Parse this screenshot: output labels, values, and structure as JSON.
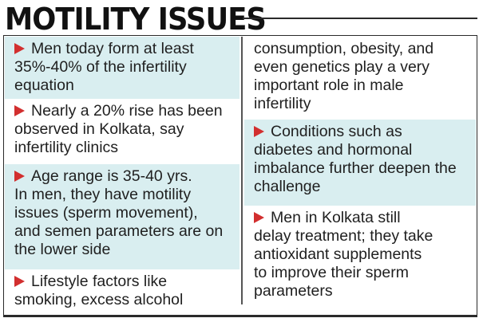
{
  "header": {
    "title": "MOTILITY ISSUES"
  },
  "left_column": {
    "items": [
      {
        "text": "Men today form at least\n35%-40% of the infertility\nequation",
        "has_bullet": true
      },
      {
        "text": "Nearly a 20% rise has been\nobserved in Kolkata, say\ninfertility clinics",
        "has_bullet": true
      },
      {
        "text": "Age range is 35-40 yrs.\nIn men, they have motility\nissues (sperm movement),\nand semen parameters are on\nthe lower side",
        "has_bullet": true
      },
      {
        "text": "Lifestyle factors like\nsmoking, excess alcohol",
        "has_bullet": true
      }
    ]
  },
  "right_column": {
    "items": [
      {
        "text": "consumption, obesity, and\neven genetics play a very\nimportant role in male\ninfertility",
        "has_bullet": false
      },
      {
        "text": "Conditions such as\ndiabetes and hormonal\nimbalance further deepen the\nchallenge",
        "has_bullet": true
      },
      {
        "text": "Men in Kolkata still\ndelay treatment; they take\nantioxidant supplements\nto improve their sperm\nparameters",
        "has_bullet": true
      }
    ]
  },
  "colors": {
    "shade": "#d9eef0",
    "arrow": "#d22f2f",
    "text": "#1f1f1f"
  }
}
